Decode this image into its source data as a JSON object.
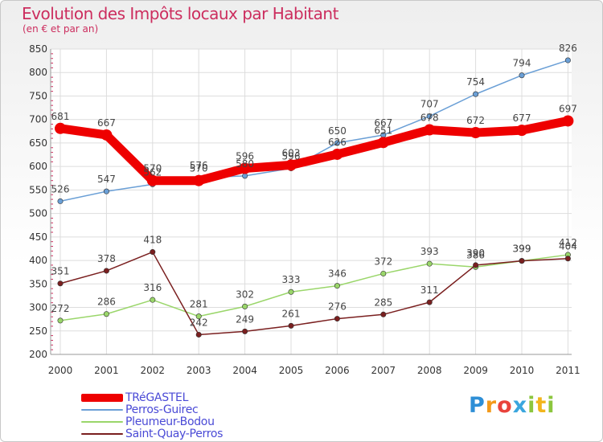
{
  "chart_data": {
    "type": "line",
    "title": "Evolution des Impôts locaux par Habitant",
    "subtitle": "(en € et par an)",
    "x": [
      "2000",
      "2001",
      "2002",
      "2003",
      "2004",
      "2005",
      "2006",
      "2007",
      "2008",
      "2009",
      "2010",
      "2011"
    ],
    "ylim": [
      200,
      850
    ],
    "yticks": [
      200,
      250,
      300,
      350,
      400,
      450,
      500,
      550,
      600,
      650,
      700,
      750,
      800,
      850
    ],
    "grid": true,
    "legend_position": "bottom-left",
    "series": [
      {
        "name": "TRéGASTEL",
        "color": "#ee0000",
        "values": [
          681,
          667,
          570,
          570,
          596,
          603,
          626,
          651,
          678,
          672,
          677,
          697
        ]
      },
      {
        "name": "Perros-Guirec",
        "color": "#6a9fd6",
        "values": [
          526,
          547,
          562,
          576,
          580,
          596,
          650,
          667,
          707,
          754,
          794,
          826
        ]
      },
      {
        "name": "Pleumeur-Bodou",
        "color": "#9ad66a",
        "values": [
          272,
          286,
          316,
          281,
          302,
          333,
          346,
          372,
          393,
          386,
          399,
          412
        ]
      },
      {
        "name": "Saint-Quay-Perros",
        "color": "#7a1f1f",
        "values": [
          351,
          378,
          418,
          242,
          249,
          261,
          276,
          285,
          311,
          390,
          399,
          404
        ]
      }
    ]
  },
  "logo": {
    "letters": [
      "P",
      "r",
      "o",
      "x",
      "i",
      "t",
      "i"
    ]
  }
}
